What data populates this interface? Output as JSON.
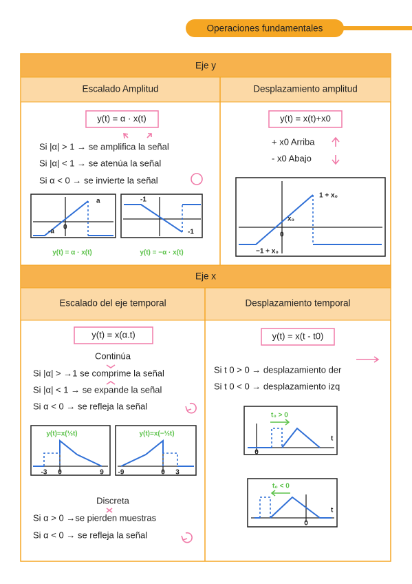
{
  "tab": "Operaciones fundamentales",
  "sections": [
    {
      "title": "Eje y",
      "columns": [
        {
          "heading": "Escalado Amplitud",
          "formula": "y(t) = α · x(t)",
          "lines": [
            "Si |α| > 1 → se amplifica la señal",
            "Si |α| < 1 → se atenúa la señal",
            "Si α < 0 → se invierte la señal"
          ],
          "plots": [
            {
              "labels": [
                "a",
                "-a",
                "0"
              ],
              "caption": "y(t) = α · x(t)"
            },
            {
              "labels": [
                "-1",
                "-1"
              ],
              "caption": "y(t) = −α · x(t)"
            }
          ]
        },
        {
          "heading": "Desplazamiento amplitud",
          "formula": "y(t) = x(t)+x0",
          "lines": [
            "+ x0 Arriba",
            "- x0 Abajo"
          ],
          "plots": [
            {
              "labels": [
                "1 + x₀",
                "x₀",
                "0",
                "−1 + x₀"
              ]
            }
          ]
        }
      ]
    },
    {
      "title": "Eje x",
      "columns": [
        {
          "heading": "Escalado del eje temporal",
          "formula": "y(t) = x(α.t)",
          "subtitles": [
            "Continúa",
            "Discreta"
          ],
          "lines": [
            "Si |α| > →1 se comprime la señal",
            "Si |α| < 1 → se expande la señal",
            "Si α < 0 → se refleja la señal",
            "Si α > 0 →se pierden muestras",
            "Si α < 0 → se refleja la señal"
          ],
          "plots": [
            {
              "labels": [
                "-3",
                "0",
                "9"
              ],
              "caption": "y(t)=x(⅓t)"
            },
            {
              "labels": [
                "-9",
                "0",
                "3"
              ],
              "caption": "y(t)=x(−⅓t)"
            }
          ]
        },
        {
          "heading": "Desplazamiento temporal",
          "formula": "y(t) = x(t - t0)",
          "lines": [
            "Si t 0 > 0 → desplazamiento der",
            "Si t 0 < 0 → desplazamiento izq"
          ],
          "plots": [
            {
              "labels": [
                "t₀ > 0",
                "t",
                "0"
              ]
            },
            {
              "labels": [
                "t₀ < 0",
                "t",
                "0"
              ]
            }
          ]
        }
      ]
    }
  ]
}
